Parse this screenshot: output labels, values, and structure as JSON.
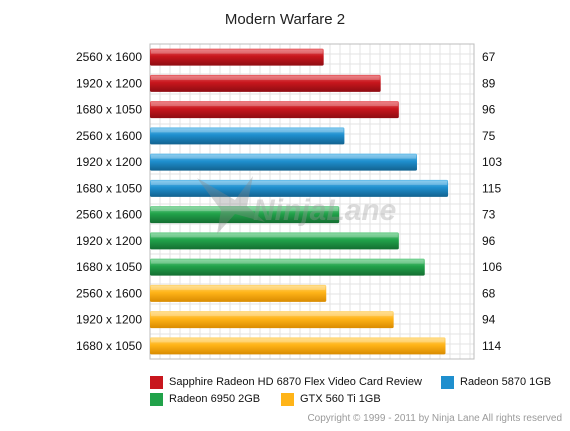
{
  "chart_data": {
    "type": "bar",
    "orientation": "horizontal",
    "title": "Modern Warfare 2",
    "categories": [
      "2560 x 1600",
      "1920 x 1200",
      "1680 x 1050",
      "2560 x 1600",
      "1920 x 1200",
      "1680 x 1050",
      "2560 x 1600",
      "1920 x 1200",
      "1680 x 1050",
      "2560 x 1600",
      "1920 x 1200",
      "1680 x 1050"
    ],
    "values": [
      67,
      89,
      96,
      75,
      103,
      115,
      73,
      96,
      106,
      68,
      94,
      114
    ],
    "bar_series_index": [
      0,
      0,
      0,
      1,
      1,
      1,
      2,
      2,
      2,
      3,
      3,
      3
    ],
    "series": [
      {
        "name": "Sapphire Radeon HD 6870 Flex Video Card Review",
        "color": "#c8161d"
      },
      {
        "name": "Radeon 5870 1GB",
        "color": "#1f8fce"
      },
      {
        "name": "Radeon 6950 2GB",
        "color": "#21a24a"
      },
      {
        "name": "GTX 560 Ti 1GB",
        "color": "#ffb418"
      }
    ],
    "xlim": [
      0,
      125
    ],
    "grid": true,
    "legend_position": "bottom"
  },
  "watermark": "NinjaLane",
  "copyright": "Copyright © 1999 - 2011 by Ninja Lane All rights reserved"
}
